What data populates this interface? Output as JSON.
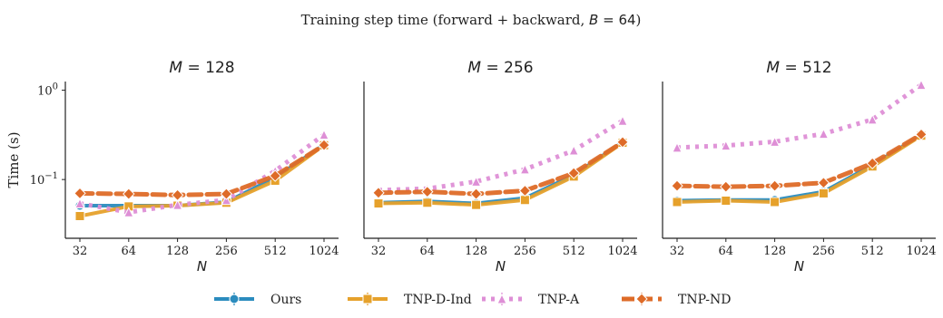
{
  "figure": {
    "title": "Training step time (forward + backward, B = 64)"
  },
  "chart_data": [
    {
      "type": "line",
      "title": "M = 128",
      "xlabel": "N",
      "ylabel": "Time (s)",
      "x_scale": "log2",
      "y_scale": "log10",
      "categories": [
        "32",
        "64",
        "128",
        "256",
        "512",
        "1024"
      ],
      "x": [
        32,
        64,
        128,
        256,
        512,
        1024
      ],
      "ylim": [
        0.022,
        1.25
      ],
      "yticks": [
        {
          "value": 1.0,
          "label": "10^0"
        },
        {
          "value": 0.1,
          "label": "10^-1"
        }
      ],
      "grid": false,
      "series": [
        {
          "name": "Ours",
          "values": [
            0.051,
            0.051,
            0.051,
            0.056,
            0.105,
            0.245
          ]
        },
        {
          "name": "TNP-D-Ind",
          "values": [
            0.039,
            0.05,
            0.051,
            0.055,
            0.097,
            0.242
          ]
        },
        {
          "name": "TNP-A",
          "values": [
            0.054,
            0.043,
            0.052,
            0.059,
            0.125,
            0.318
          ]
        },
        {
          "name": "TNP-ND",
          "values": [
            0.07,
            0.069,
            0.067,
            0.069,
            0.11,
            0.243
          ]
        }
      ]
    },
    {
      "type": "line",
      "title": "M = 256",
      "xlabel": "N",
      "ylabel": "",
      "x_scale": "log2",
      "y_scale": "log10",
      "categories": [
        "32",
        "64",
        "128",
        "256",
        "512",
        "1024"
      ],
      "x": [
        32,
        64,
        128,
        256,
        512,
        1024
      ],
      "ylim": [
        0.022,
        1.25
      ],
      "yticks": [],
      "grid": false,
      "series": [
        {
          "name": "Ours",
          "values": [
            0.055,
            0.057,
            0.054,
            0.062,
            0.112,
            0.262
          ]
        },
        {
          "name": "TNP-D-Ind",
          "values": [
            0.054,
            0.055,
            0.052,
            0.059,
            0.108,
            0.258
          ]
        },
        {
          "name": "TNP-A",
          "values": [
            0.076,
            0.079,
            0.095,
            0.13,
            0.212,
            0.455
          ]
        },
        {
          "name": "TNP-ND",
          "values": [
            0.071,
            0.073,
            0.069,
            0.075,
            0.118,
            0.262
          ]
        }
      ]
    },
    {
      "type": "line",
      "title": "M = 512",
      "xlabel": "N",
      "ylabel": "",
      "x_scale": "log2",
      "y_scale": "log10",
      "categories": [
        "32",
        "64",
        "128",
        "256",
        "512",
        "1024"
      ],
      "x": [
        32,
        64,
        128,
        256,
        512,
        1024
      ],
      "ylim": [
        0.022,
        1.25
      ],
      "yticks": [],
      "grid": false,
      "series": [
        {
          "name": "Ours",
          "values": [
            0.058,
            0.059,
            0.059,
            0.073,
            0.145,
            0.315
          ]
        },
        {
          "name": "TNP-D-Ind",
          "values": [
            0.056,
            0.058,
            0.056,
            0.07,
            0.14,
            0.31
          ]
        },
        {
          "name": "TNP-A",
          "values": [
            0.228,
            0.24,
            0.265,
            0.325,
            0.47,
            1.15
          ]
        },
        {
          "name": "TNP-ND",
          "values": [
            0.085,
            0.083,
            0.085,
            0.092,
            0.152,
            0.32
          ]
        }
      ]
    }
  ],
  "legend": {
    "placement": "bottom-center",
    "items": [
      {
        "name": "Ours",
        "color": "#2b8cbe",
        "marker": "circle",
        "dash": "solid"
      },
      {
        "name": "TNP-D-Ind",
        "color": "#e6a12b",
        "marker": "square",
        "dash": "solid"
      },
      {
        "name": "TNP-A",
        "color": "#de8fd6",
        "marker": "triangle",
        "dash": "dotted"
      },
      {
        "name": "TNP-ND",
        "color": "#de6b28",
        "marker": "diamond",
        "dash": "dashed"
      }
    ]
  }
}
